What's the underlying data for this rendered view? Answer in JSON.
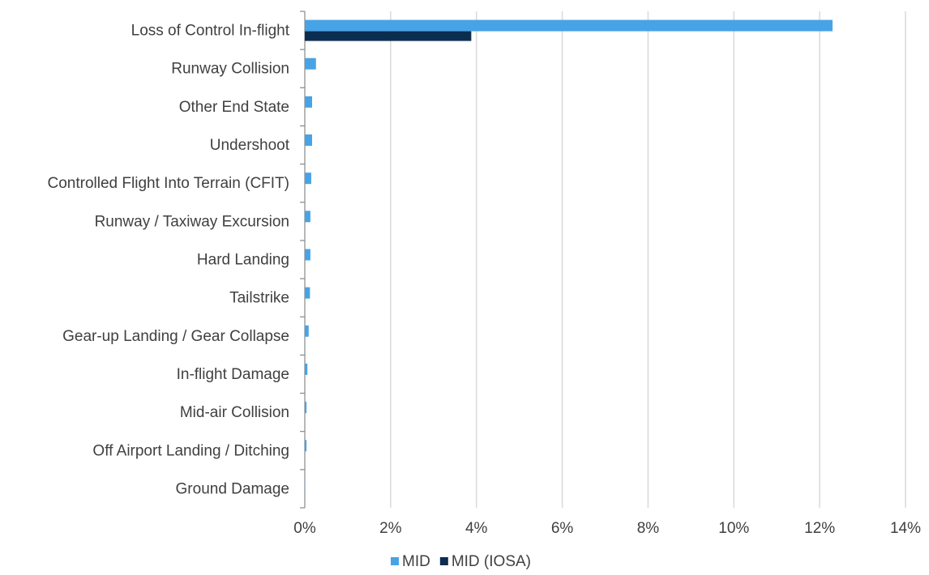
{
  "chart_data": {
    "type": "hbar",
    "categories": [
      "Loss of Control In-flight",
      "Runway Collision",
      "Other End State",
      "Undershoot",
      "Controlled Flight Into Terrain (CFIT)",
      "Runway / Taxiway Excursion",
      "Hard Landing",
      "Tailstrike",
      "Gear-up Landing / Gear Collapse",
      "In-flight Damage",
      "Mid-air Collision",
      "Off Airport Landing / Ditching",
      "Ground Damage"
    ],
    "series": [
      {
        "name": "MID",
        "color": "#47a3e6",
        "values": [
          12.3,
          0.26,
          0.17,
          0.17,
          0.15,
          0.13,
          0.13,
          0.12,
          0.09,
          0.06,
          0.04,
          0.04,
          0.01
        ]
      },
      {
        "name": "MID (IOSA)",
        "color": "#0b2d50",
        "values": [
          3.88,
          0,
          0,
          0,
          0,
          0,
          0,
          0,
          0,
          0,
          0,
          0,
          0
        ]
      }
    ],
    "xlim": [
      0,
      14
    ],
    "xticks": [
      {
        "value": 0,
        "label": "0%"
      },
      {
        "value": 2,
        "label": "2%"
      },
      {
        "value": 4,
        "label": "4%"
      },
      {
        "value": 6,
        "label": "6%"
      },
      {
        "value": 8,
        "label": "8%"
      },
      {
        "value": 10,
        "label": "10%"
      },
      {
        "value": 12,
        "label": "12%"
      },
      {
        "value": 14,
        "label": "14%"
      }
    ],
    "grid": true,
    "legend": "bottom"
  }
}
